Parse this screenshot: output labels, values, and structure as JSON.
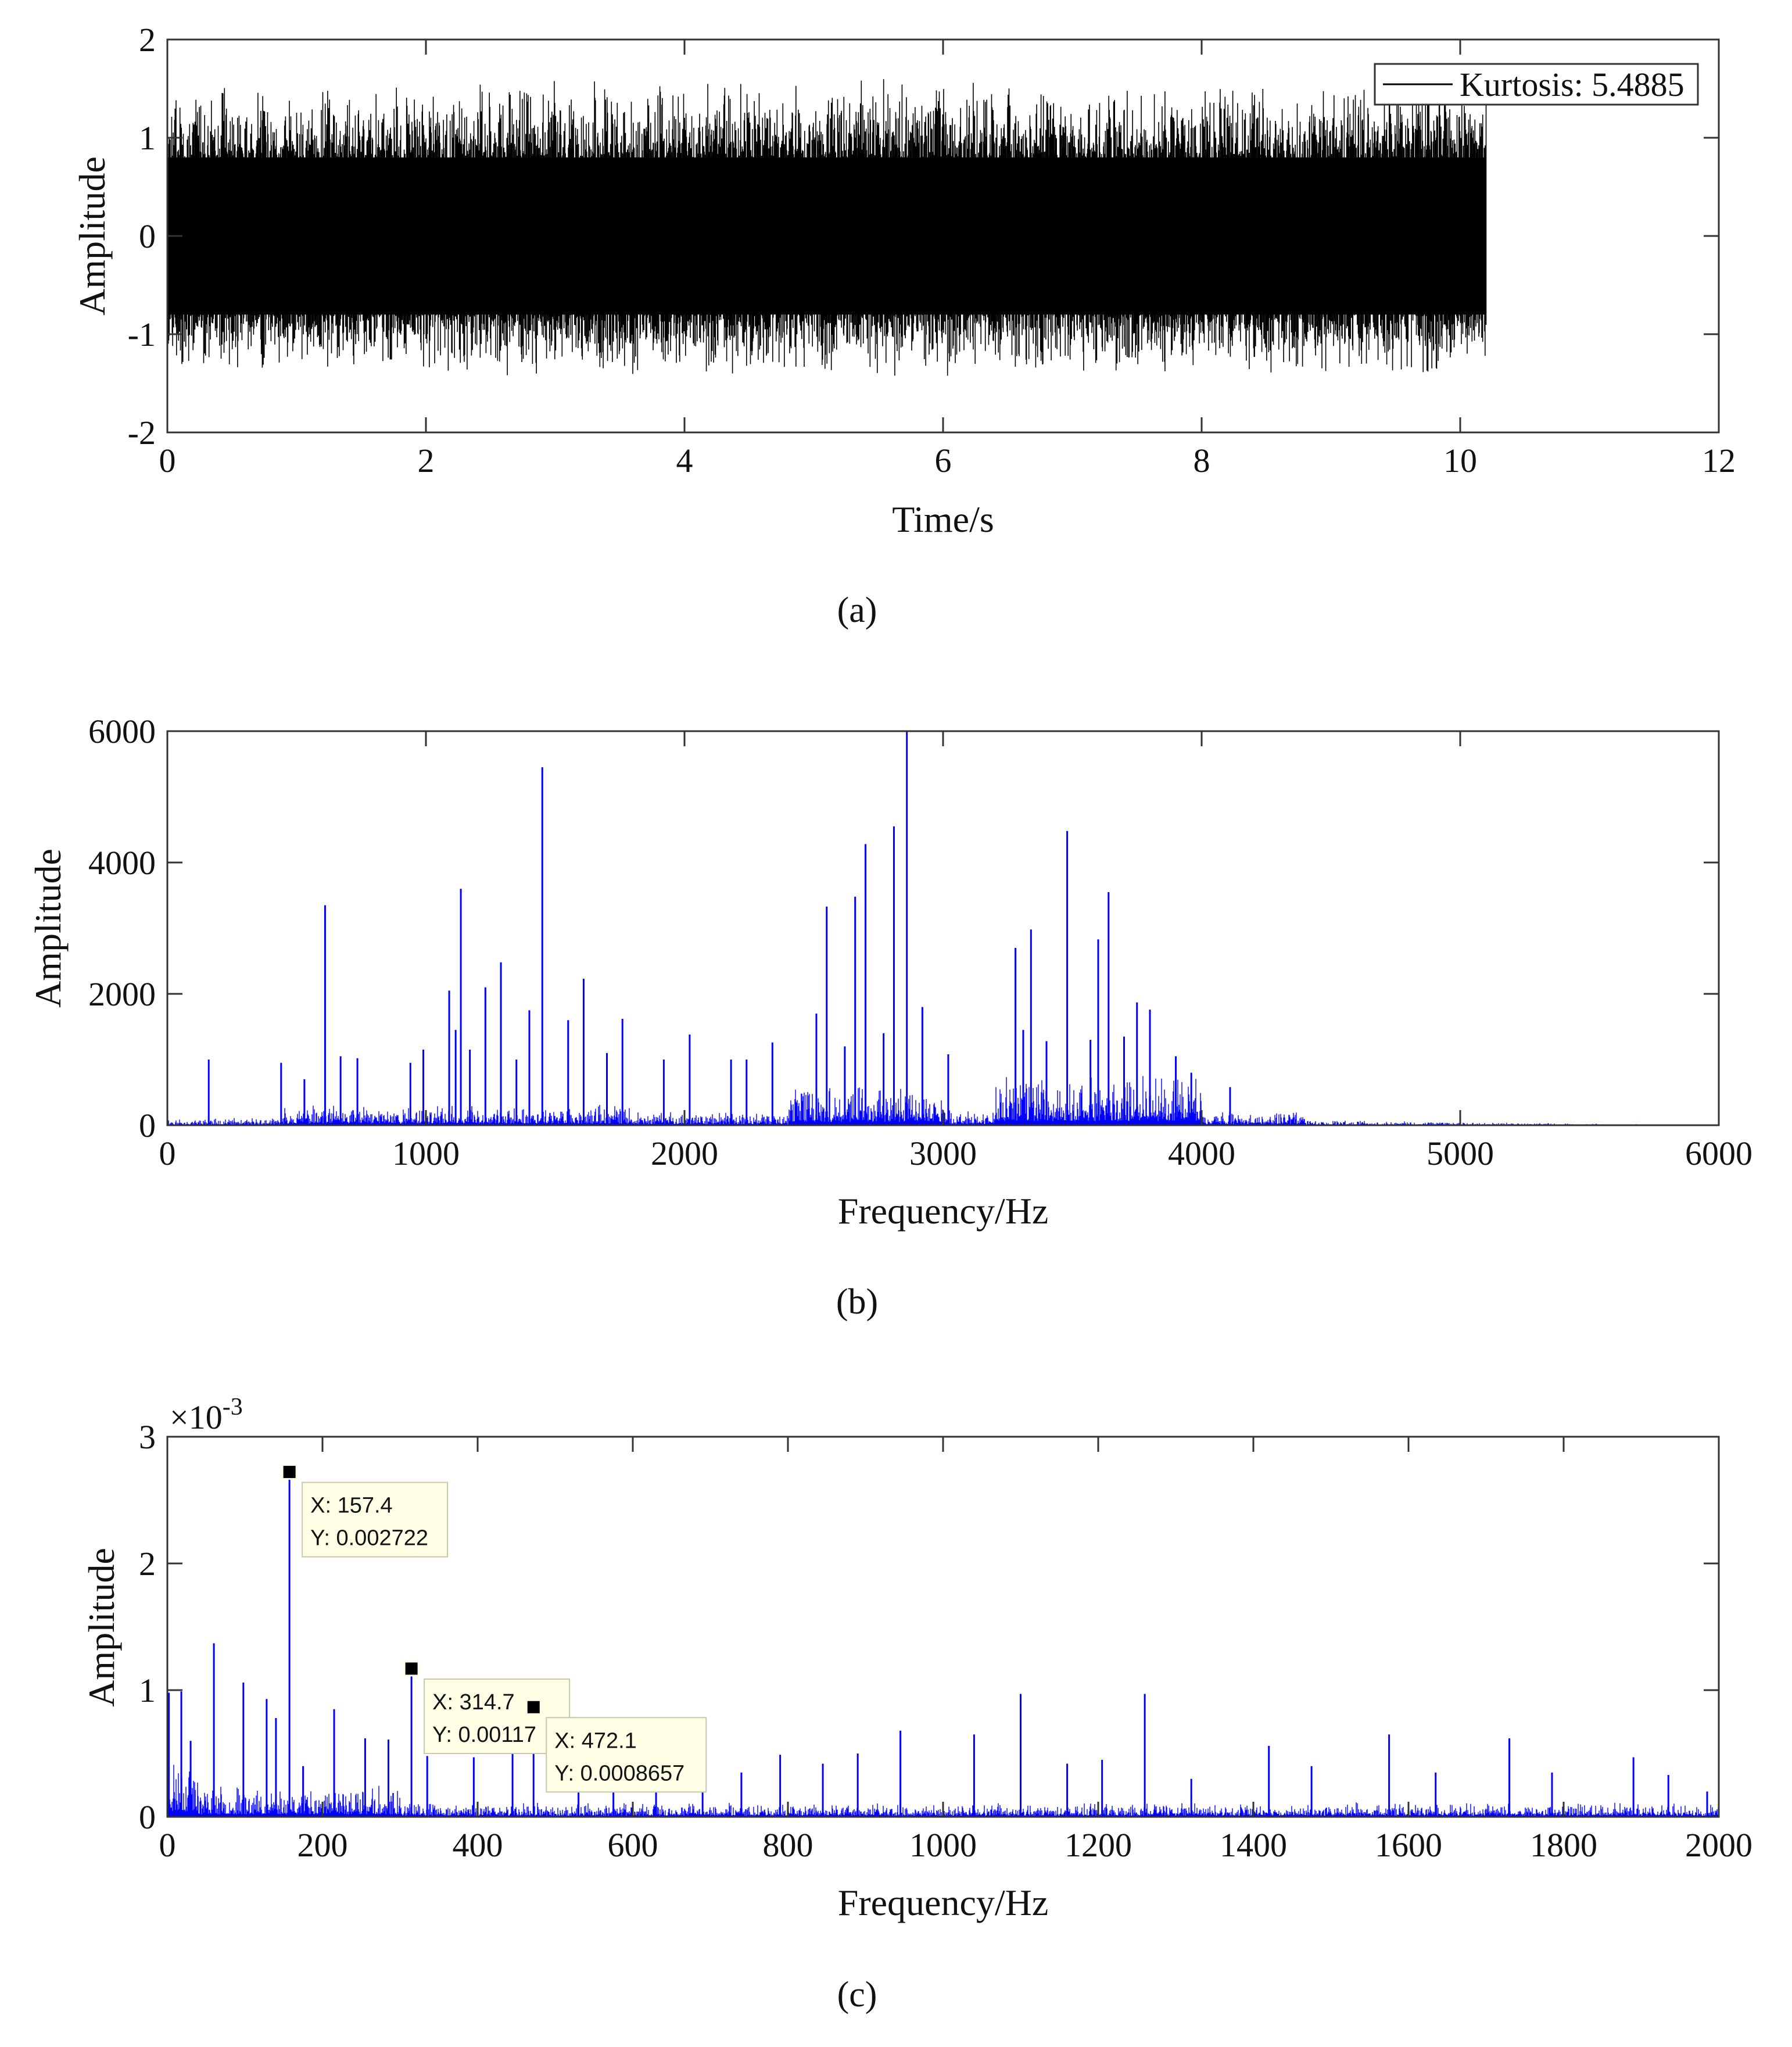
{
  "chart_data": [
    {
      "panel_label": "(a)",
      "type": "line",
      "xlabel": "Time/s",
      "ylabel": "Amplitude",
      "xlim": [
        0,
        12
      ],
      "ylim": [
        -2,
        2
      ],
      "xticks": [
        0,
        2,
        4,
        6,
        8,
        10,
        12
      ],
      "yticks": [
        -2,
        -1,
        0,
        1,
        2
      ],
      "grid": false,
      "legend": {
        "placement": "top-right",
        "entries": [
          "Kurtosis: 5.4885"
        ]
      },
      "series": [
        {
          "name": "Kurtosis: 5.4885",
          "color": "#000000",
          "signal": {
            "t_start": 0,
            "t_end": 10.2,
            "typical_peak": 1.0,
            "max_peak": 1.6,
            "min_peak": -1.45
          }
        }
      ]
    },
    {
      "panel_label": "(b)",
      "type": "line",
      "xlabel": "Frequency/Hz",
      "ylabel": "Amplitude",
      "xlim": [
        0,
        6000
      ],
      "ylim": [
        0,
        6000
      ],
      "xticks": [
        0,
        1000,
        2000,
        3000,
        4000,
        5000,
        6000
      ],
      "yticks": [
        0,
        2000,
        4000,
        6000
      ],
      "grid": false,
      "series": [
        {
          "color": "#0000ff",
          "peaks": [
            [
              160,
              1000
            ],
            [
              440,
              950
            ],
            [
              530,
              700
            ],
            [
              610,
              3350
            ],
            [
              670,
              1050
            ],
            [
              735,
              1020
            ],
            [
              940,
              950
            ],
            [
              990,
              1150
            ],
            [
              1090,
              2050
            ],
            [
              1115,
              1450
            ],
            [
              1135,
              3600
            ],
            [
              1170,
              1150
            ],
            [
              1230,
              2100
            ],
            [
              1290,
              2480
            ],
            [
              1350,
              1000
            ],
            [
              1400,
              1750
            ],
            [
              1450,
              5450
            ],
            [
              1550,
              1600
            ],
            [
              1610,
              2230
            ],
            [
              1700,
              1100
            ],
            [
              1760,
              1620
            ],
            [
              1920,
              1000
            ],
            [
              2020,
              1380
            ],
            [
              2180,
              1000
            ],
            [
              2240,
              1000
            ],
            [
              2340,
              1260
            ],
            [
              2510,
              1700
            ],
            [
              2550,
              3330
            ],
            [
              2620,
              1200
            ],
            [
              2660,
              3480
            ],
            [
              2700,
              4280
            ],
            [
              2770,
              1400
            ],
            [
              2810,
              4550
            ],
            [
              2860,
              6100
            ],
            [
              2920,
              1800
            ],
            [
              3020,
              1080
            ],
            [
              3280,
              2700
            ],
            [
              3310,
              1450
            ],
            [
              3340,
              2980
            ],
            [
              3400,
              1280
            ],
            [
              3480,
              4480
            ],
            [
              3570,
              1300
            ],
            [
              3600,
              2830
            ],
            [
              3640,
              3550
            ],
            [
              3700,
              1350
            ],
            [
              3750,
              1870
            ],
            [
              3800,
              1760
            ],
            [
              3900,
              1050
            ],
            [
              3960,
              800
            ],
            [
              4110,
              580
            ]
          ]
        }
      ]
    },
    {
      "panel_label": "(c)",
      "type": "line",
      "xlabel": "Frequency/Hz",
      "ylabel": "Amplitude",
      "xlim": [
        0,
        2000
      ],
      "ylim": [
        0,
        0.003
      ],
      "xticks": [
        0,
        200,
        400,
        600,
        800,
        1000,
        1200,
        1400,
        1600,
        1800,
        2000
      ],
      "yticks": [
        0,
        0.001,
        0.002,
        0.003
      ],
      "ytick_labels": [
        "0",
        "1",
        "2",
        "3"
      ],
      "y_multiplier": {
        "base": "×10",
        "exponent": "-3"
      },
      "grid": false,
      "datatips": [
        {
          "x": 157.4,
          "y": 0.002722,
          "line1": "X: 157.4",
          "line2": "Y: 0.002722"
        },
        {
          "x": 314.7,
          "y": 0.00117,
          "line1": "X: 314.7",
          "line2": "Y: 0.00117"
        },
        {
          "x": 472.1,
          "y": 0.0008657,
          "line1": "X: 472.1",
          "line2": "Y: 0.0008657"
        }
      ],
      "series": [
        {
          "color": "#0000ff",
          "peaks": [
            [
              2,
              0.00098
            ],
            [
              18,
              0.00099
            ],
            [
              30,
              0.0006
            ],
            [
              60,
              0.00137
            ],
            [
              98,
              0.00106
            ],
            [
              128,
              0.00093
            ],
            [
              140,
              0.00078
            ],
            [
              157.4,
              0.002722
            ],
            [
              175,
              0.0004
            ],
            [
              215,
              0.00085
            ],
            [
              255,
              0.00062
            ],
            [
              285,
              0.00061
            ],
            [
              314.7,
              0.00117
            ],
            [
              335,
              0.00048
            ],
            [
              395,
              0.00047
            ],
            [
              445,
              0.00055
            ],
            [
              472.1,
              0.0008657
            ],
            [
              530,
              0.00042
            ],
            [
              575,
              0.00039
            ],
            [
              630,
              0.0003
            ],
            [
              690,
              0.00042
            ],
            [
              740,
              0.00035
            ],
            [
              790,
              0.00049
            ],
            [
              845,
              0.00042
            ],
            [
              890,
              0.0005
            ],
            [
              945,
              0.00068
            ],
            [
              1040,
              0.00065
            ],
            [
              1100,
              0.00097
            ],
            [
              1160,
              0.00042
            ],
            [
              1205,
              0.00045
            ],
            [
              1260,
              0.00097
            ],
            [
              1320,
              0.0003
            ],
            [
              1420,
              0.00056
            ],
            [
              1475,
              0.0004
            ],
            [
              1575,
              0.00065
            ],
            [
              1635,
              0.00035
            ],
            [
              1730,
              0.00062
            ],
            [
              1785,
              0.00035
            ],
            [
              1890,
              0.00047
            ],
            [
              1935,
              0.00033
            ],
            [
              1985,
              0.0002
            ]
          ]
        }
      ]
    }
  ]
}
